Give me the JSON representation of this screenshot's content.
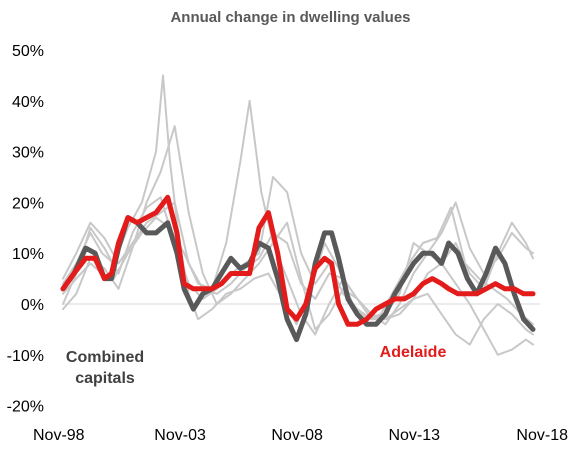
{
  "chart_data": {
    "type": "line",
    "title": "Annual change in dwelling values",
    "xlabel": "",
    "ylabel": "",
    "x_tick_labels": [
      "Nov-98",
      "Nov-03",
      "Nov-08",
      "Nov-13",
      "Nov-18"
    ],
    "y_tick_labels": [
      "50%",
      "40%",
      "30%",
      "20%",
      "10%",
      "0%",
      "-10%",
      "-20%"
    ],
    "y_ticks": [
      50,
      40,
      30,
      20,
      10,
      0,
      -10,
      -20
    ],
    "ylim": [
      -20,
      50
    ],
    "xlim": [
      1998.83,
      2019.2
    ],
    "grid": false,
    "annotations": [
      {
        "text": [
          "Combined",
          "capitals"
        ],
        "color": "#404040"
      },
      {
        "text": [
          "Adelaide"
        ],
        "color": "#e31b1b"
      }
    ],
    "colors": {
      "combined": "#595959",
      "adelaide": "#e31b1b",
      "other": "#c8c8c8",
      "zero_line": "#d9d9d9"
    },
    "series": [
      {
        "name": "Combined capitals",
        "role": "combined",
        "x": [
          1998.83,
          1999.3,
          1999.8,
          2000.2,
          2000.6,
          2000.9,
          2001.2,
          2001.6,
          2002.0,
          2002.4,
          2002.8,
          2003.3,
          2003.7,
          2004.0,
          2004.4,
          2004.8,
          2005.2,
          2005.6,
          2006.0,
          2006.4,
          2006.8,
          2007.2,
          2007.6,
          2008.0,
          2008.4,
          2008.8,
          2009.2,
          2009.6,
          2010.0,
          2010.3,
          2010.6,
          2011.0,
          2011.4,
          2011.8,
          2012.2,
          2012.6,
          2013.0,
          2013.4,
          2013.8,
          2014.2,
          2014.6,
          2015.0,
          2015.3,
          2015.7,
          2016.1,
          2016.5,
          2016.9,
          2017.3,
          2017.7,
          2018.1,
          2018.5,
          2018.9
        ],
        "y": [
          3,
          6,
          11,
          10,
          5,
          5,
          11,
          17,
          16,
          14,
          14,
          16,
          10,
          3,
          -1,
          2,
          3,
          6,
          9,
          7,
          8,
          12,
          11,
          5,
          -3,
          -7,
          -2,
          8,
          14,
          14,
          9,
          1,
          -2,
          -4,
          -4,
          -2,
          2,
          5,
          8,
          10,
          10,
          8,
          12,
          10,
          5,
          2,
          6,
          11,
          8,
          2,
          -3,
          -5
        ]
      },
      {
        "name": "Adelaide",
        "role": "adelaide",
        "x": [
          1998.83,
          1999.3,
          1999.8,
          2000.2,
          2000.6,
          2000.9,
          2001.2,
          2001.6,
          2002.0,
          2002.4,
          2002.8,
          2003.3,
          2003.7,
          2004.0,
          2004.4,
          2004.8,
          2005.2,
          2005.6,
          2006.0,
          2006.4,
          2006.8,
          2007.2,
          2007.6,
          2008.0,
          2008.4,
          2008.8,
          2009.2,
          2009.6,
          2010.0,
          2010.3,
          2010.6,
          2011.0,
          2011.4,
          2011.8,
          2012.2,
          2012.6,
          2013.0,
          2013.4,
          2013.8,
          2014.2,
          2014.6,
          2015.0,
          2015.3,
          2015.7,
          2016.1,
          2016.5,
          2016.9,
          2017.3,
          2017.7,
          2018.1,
          2018.5,
          2018.9
        ],
        "y": [
          3,
          6,
          9,
          9,
          5,
          6,
          12,
          17,
          16,
          17,
          18,
          21,
          14,
          4,
          3,
          3,
          3,
          4,
          6,
          6,
          6,
          15,
          18,
          10,
          -1,
          -3,
          0,
          7,
          9,
          8,
          0,
          -4,
          -4,
          -3,
          -1,
          0,
          1,
          1,
          2,
          4,
          5,
          4,
          3,
          2,
          2,
          2,
          3,
          4,
          3,
          3,
          2,
          2
        ]
      },
      {
        "role": "other",
        "x": [
          1998.83,
          1999.4,
          2000.0,
          2000.5,
          2001.0,
          2001.6,
          2002.2,
          2002.8,
          2003.1,
          2003.4,
          2003.8,
          2004.2,
          2004.6,
          2005.2,
          2005.8,
          2006.4,
          2007.0,
          2007.6,
          2008.2,
          2008.8,
          2009.4,
          2010.0,
          2010.6,
          2011.2,
          2011.8,
          2012.4,
          2013.0,
          2013.6,
          2014.2,
          2014.8,
          2015.4,
          2016.0,
          2016.6,
          2017.2,
          2017.8,
          2018.4,
          2018.9
        ],
        "y": [
          4,
          8,
          14,
          10,
          8,
          15,
          20,
          30,
          45,
          28,
          12,
          2,
          -3,
          -1,
          2,
          3,
          5,
          6,
          1,
          -4,
          3,
          12,
          7,
          0,
          -3,
          -2,
          3,
          8,
          12,
          13,
          19,
          8,
          5,
          3,
          1,
          -2,
          -4
        ]
      },
      {
        "role": "other",
        "x": [
          1998.83,
          1999.4,
          2000.0,
          2000.5,
          2001.0,
          2001.6,
          2002.2,
          2002.8,
          2003.4,
          2004.0,
          2004.6,
          2005.2,
          2005.8,
          2006.4,
          2006.8,
          2007.3,
          2007.8,
          2008.4,
          2009.0,
          2009.6,
          2010.2,
          2010.8,
          2011.4,
          2012.0,
          2012.6,
          2013.2,
          2013.8,
          2014.4,
          2015.0,
          2015.6,
          2016.2,
          2016.8,
          2017.4,
          2018.0,
          2018.6,
          2018.9
        ],
        "y": [
          2,
          5,
          8,
          6,
          5,
          10,
          14,
          17,
          15,
          10,
          4,
          3,
          12,
          28,
          40,
          22,
          12,
          5,
          -2,
          -6,
          0,
          5,
          1,
          -2,
          -3,
          -1,
          1,
          2,
          -2,
          -6,
          -8,
          -3,
          0,
          -2,
          -5,
          -6
        ]
      },
      {
        "role": "other",
        "x": [
          1998.83,
          1999.4,
          2000.0,
          2000.6,
          2001.2,
          2001.8,
          2002.4,
          2003.0,
          2003.6,
          2004.2,
          2004.8,
          2005.4,
          2006.0,
          2006.6,
          2007.2,
          2007.8,
          2008.4,
          2009.0,
          2009.6,
          2010.2,
          2010.8,
          2011.4,
          2012.0,
          2012.6,
          2013.2,
          2013.8,
          2014.4,
          2015.0,
          2015.6,
          2016.2,
          2016.8,
          2017.4,
          2018.0,
          2018.6,
          2018.9
        ],
        "y": [
          0,
          6,
          15,
          11,
          6,
          14,
          19,
          21,
          12,
          4,
          1,
          3,
          6,
          8,
          10,
          25,
          22,
          10,
          4,
          8,
          2,
          -1,
          -3,
          -2,
          2,
          12,
          10,
          8,
          12,
          6,
          3,
          10,
          16,
          12,
          9
        ]
      },
      {
        "role": "other",
        "x": [
          1998.83,
          1999.4,
          2000.0,
          2000.6,
          2001.2,
          2001.8,
          2002.4,
          2003.0,
          2003.6,
          2004.2,
          2004.8,
          2005.4,
          2006.0,
          2006.6,
          2007.2,
          2007.8,
          2008.4,
          2009.0,
          2009.6,
          2010.2,
          2010.8,
          2011.4,
          2012.0,
          2012.6,
          2013.2,
          2013.8,
          2014.4,
          2015.0,
          2015.6,
          2016.2,
          2016.8,
          2017.4,
          2018.0,
          2018.6,
          2018.9
        ],
        "y": [
          5,
          10,
          16,
          13,
          8,
          12,
          16,
          18,
          20,
          8,
          3,
          2,
          4,
          7,
          9,
          14,
          12,
          4,
          1,
          6,
          5,
          1,
          -2,
          -4,
          0,
          6,
          10,
          14,
          20,
          11,
          6,
          9,
          14,
          11,
          10
        ]
      },
      {
        "role": "other",
        "x": [
          1998.83,
          1999.4,
          2000.0,
          2000.6,
          2001.2,
          2001.8,
          2002.4,
          2003.0,
          2003.6,
          2004.2,
          2004.8,
          2005.4,
          2006.0,
          2006.6,
          2007.2,
          2007.8,
          2008.4,
          2009.0,
          2009.6,
          2010.2,
          2010.8,
          2011.4,
          2012.0,
          2012.6,
          2013.2,
          2013.8,
          2014.4,
          2015.0,
          2015.6,
          2016.2,
          2016.8,
          2017.4,
          2018.0,
          2018.6,
          2018.9
        ],
        "y": [
          -1,
          2,
          9,
          7,
          3,
          11,
          20,
          26,
          35,
          18,
          6,
          0,
          2,
          5,
          8,
          12,
          16,
          5,
          -5,
          -2,
          3,
          1,
          -3,
          -3,
          -2,
          1,
          6,
          8,
          4,
          0,
          -5,
          -10,
          -9,
          -7,
          -8
        ]
      }
    ]
  }
}
